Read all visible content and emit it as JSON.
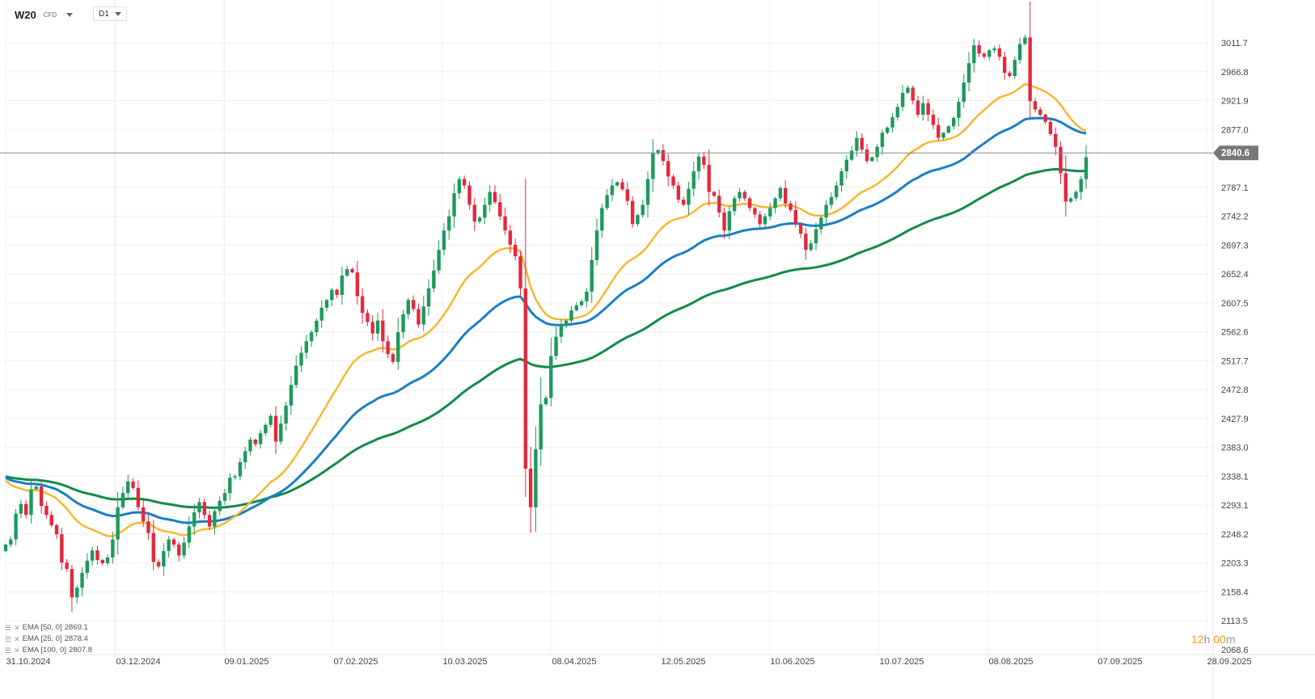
{
  "header": {
    "symbol": "W20",
    "instrument_type": "CFD",
    "timeframe": "D1"
  },
  "legend": [
    {
      "label": "EMA [50, 0]",
      "value": "2869.1"
    },
    {
      "label": "EMA [25, 0]",
      "value": "2878.4"
    },
    {
      "label": "EMA [100, 0]",
      "value": "2807.8"
    }
  ],
  "countdown": {
    "hours": "12",
    "hours_unit": "h",
    "minutes": "00",
    "minutes_unit": "m"
  },
  "chart_data": {
    "type": "candlestick",
    "y_axis_ticks": [
      3011.7,
      2966.8,
      2921.9,
      2877.0,
      2787.1,
      2742.2,
      2697.3,
      2652.4,
      2607.5,
      2562.6,
      2517.7,
      2472.8,
      2427.9,
      2383.0,
      2338.1,
      2293.1,
      2248.2,
      2203.3,
      2158.4,
      2113.5,
      2068.6
    ],
    "ylim": [
      2068.6,
      3040
    ],
    "x_axis_labels": [
      "31.10.2024",
      "03.12.2024",
      "09.01.2025",
      "07.02.2025",
      "10.03.2025",
      "08.04.2025",
      "12.05.2025",
      "10.06.2025",
      "10.07.2025",
      "08.08.2025",
      "07.09.2025",
      "28.09.2025"
    ],
    "current_price": 2840.6,
    "colors": {
      "up": "#1c9a5c",
      "down": "#e5283e",
      "ema25": "#f7b733",
      "ema50": "#1b7fc4",
      "ema100": "#138a4a",
      "price_line": "#888888"
    },
    "candles_close": [
      2232,
      2240,
      2280,
      2295,
      2278,
      2318,
      2322,
      2292,
      2278,
      2262,
      2248,
      2204,
      2194,
      2150,
      2165,
      2188,
      2207,
      2223,
      2208,
      2203,
      2212,
      2240,
      2290,
      2312,
      2330,
      2320,
      2290,
      2268,
      2250,
      2205,
      2198,
      2222,
      2240,
      2232,
      2215,
      2235,
      2260,
      2282,
      2298,
      2278,
      2260,
      2284,
      2300,
      2312,
      2336,
      2338,
      2360,
      2377,
      2395,
      2388,
      2405,
      2418,
      2432,
      2392,
      2420,
      2448,
      2480,
      2510,
      2530,
      2548,
      2562,
      2580,
      2600,
      2612,
      2628,
      2620,
      2650,
      2660,
      2655,
      2618,
      2592,
      2578,
      2560,
      2580,
      2548,
      2528,
      2516,
      2562,
      2590,
      2612,
      2598,
      2574,
      2602,
      2630,
      2658,
      2690,
      2720,
      2742,
      2778,
      2800,
      2790,
      2760,
      2734,
      2740,
      2760,
      2780,
      2764,
      2742,
      2720,
      2698,
      2680,
      2630,
      2350,
      2290,
      2380,
      2450,
      2460,
      2525,
      2555,
      2572,
      2580,
      2596,
      2604,
      2610,
      2625,
      2674,
      2720,
      2755,
      2775,
      2790,
      2795,
      2784,
      2766,
      2730,
      2744,
      2760,
      2800,
      2840,
      2845,
      2828,
      2804,
      2790,
      2768,
      2760,
      2785,
      2812,
      2835,
      2822,
      2780,
      2774,
      2748,
      2720,
      2750,
      2770,
      2780,
      2770,
      2755,
      2745,
      2730,
      2742,
      2755,
      2770,
      2786,
      2762,
      2752,
      2730,
      2715,
      2690,
      2700,
      2722,
      2740,
      2760,
      2772,
      2790,
      2812,
      2830,
      2844,
      2864,
      2846,
      2828,
      2834,
      2850,
      2872,
      2880,
      2896,
      2912,
      2934,
      2942,
      2922,
      2900,
      2918,
      2900,
      2884,
      2864,
      2872,
      2882,
      2895,
      2920,
      2950,
      2980,
      3008,
      2995,
      2990,
      3000,
      3003,
      2990,
      2965,
      2960,
      2985,
      3010,
      3020,
      2921,
      2908,
      2900,
      2889,
      2870,
      2850,
      2809,
      2765,
      2770,
      2780,
      2800,
      2834
    ],
    "series": [
      {
        "name": "EMA [25, 0]",
        "last": 2878.4
      },
      {
        "name": "EMA [50, 0]",
        "last": 2869.1
      },
      {
        "name": "EMA [100, 0]",
        "last": 2807.8
      }
    ]
  }
}
